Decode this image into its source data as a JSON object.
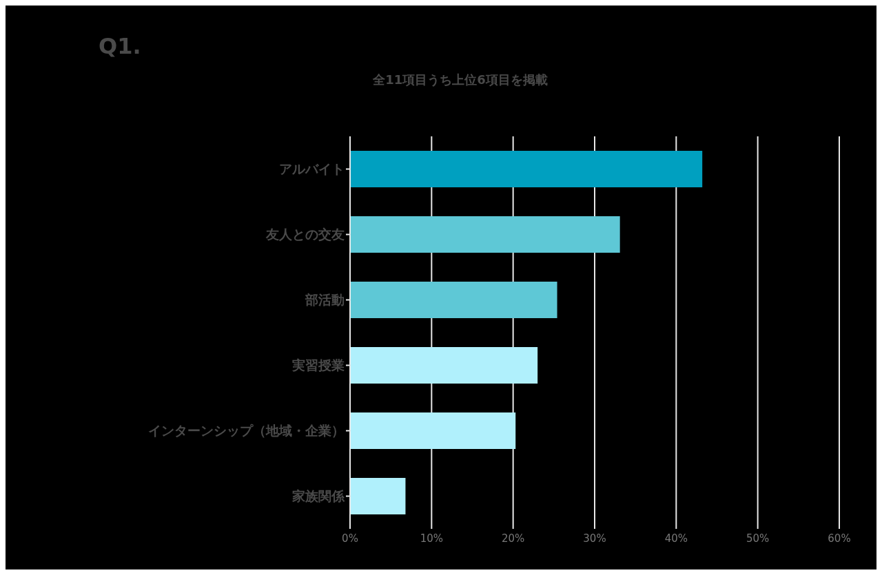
{
  "chart_data": {
    "type": "bar",
    "orientation": "horizontal",
    "title": "Q1.",
    "subtitle": "全11項目うち上位6項目を掲載",
    "categories": [
      "アルバイト",
      "友人との交友",
      "部活動",
      "実習授業",
      "インターンシップ（地域・企業）",
      "家族関係"
    ],
    "values": [
      43.2,
      33.1,
      25.4,
      23.0,
      20.3,
      6.8
    ],
    "colors": [
      "#00a0c0",
      "#5ec8d6",
      "#5ec8d6",
      "#b0f0fc",
      "#b0f0fc",
      "#b0f0fc"
    ],
    "xlim": [
      0,
      60
    ],
    "xticks": [
      {
        "value": 0,
        "label": "0%"
      },
      {
        "value": 10,
        "label": "10%"
      },
      {
        "value": 20,
        "label": "20%"
      },
      {
        "value": 30,
        "label": "30%"
      },
      {
        "value": 40,
        "label": "40%"
      },
      {
        "value": 50,
        "label": "50%"
      },
      {
        "value": 60,
        "label": "60%"
      }
    ],
    "grid": "x"
  }
}
